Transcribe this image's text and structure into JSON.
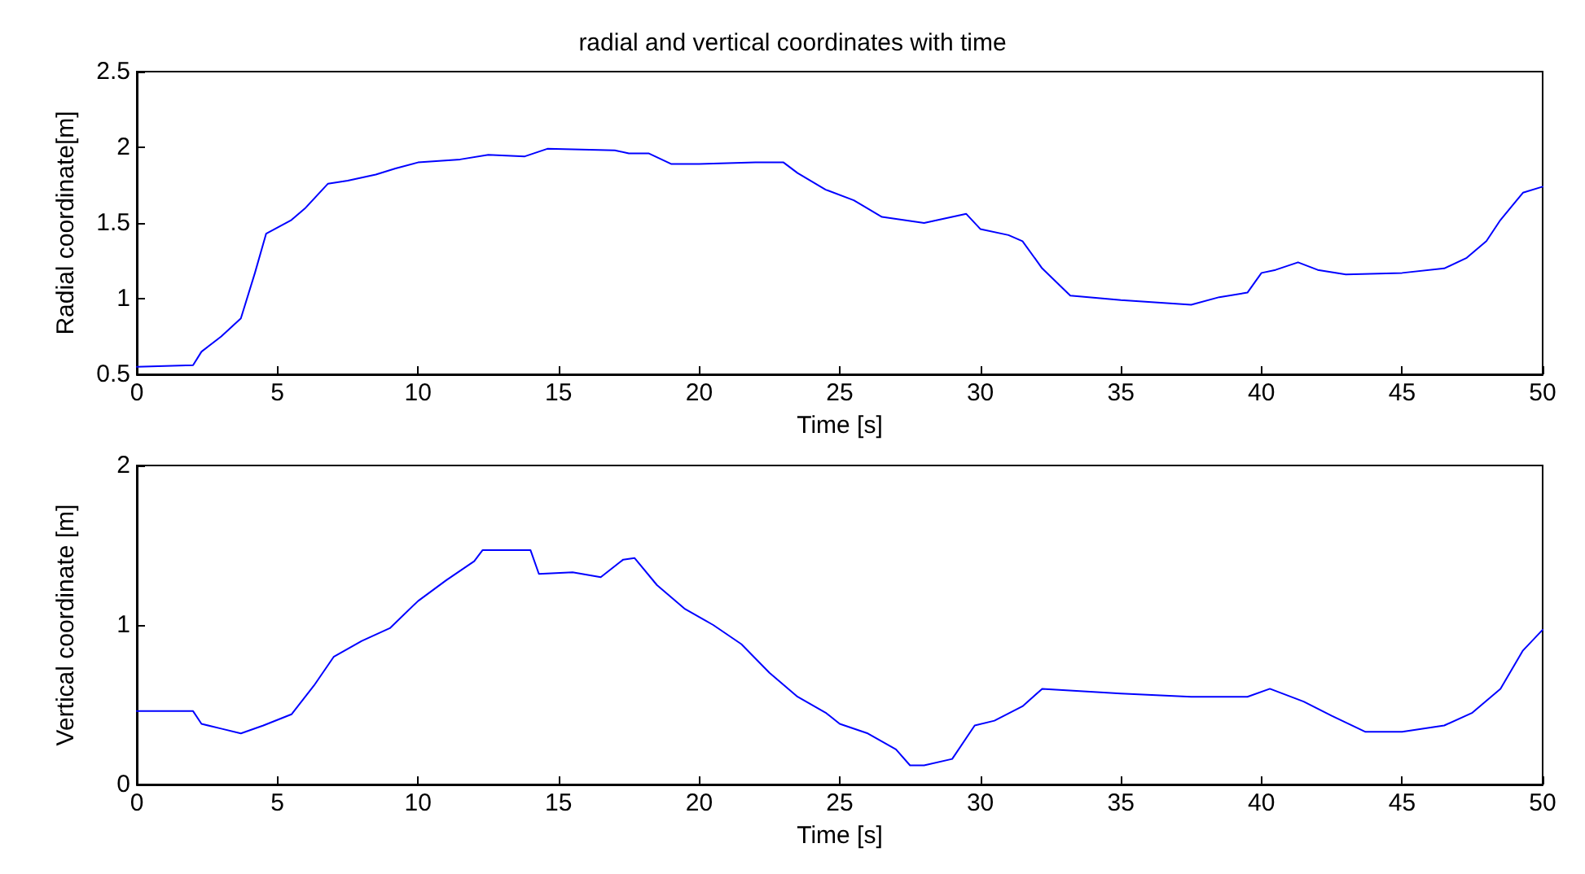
{
  "chart_data": [
    {
      "type": "line",
      "title": "radial and vertical coordinates with time",
      "xlabel": "Time [s]",
      "ylabel": "Radial coordinate[m]",
      "xlim": [
        0,
        50
      ],
      "xticks": [
        0,
        5,
        10,
        15,
        20,
        25,
        30,
        35,
        40,
        45,
        50
      ],
      "ylim": [
        0.5,
        2.5
      ],
      "yticks": [
        0.5,
        1,
        1.5,
        2,
        2.5
      ],
      "grid": false,
      "marker": "none",
      "line_style": "solid",
      "series": [
        {
          "color": "#0000ff",
          "x": [
            0,
            2,
            2.3,
            3,
            3.7,
            4.2,
            4.6,
            5.5,
            6,
            6.8,
            7.5,
            8.5,
            9.2,
            10,
            11.5,
            12.5,
            13.8,
            14.6,
            17,
            17.5,
            18.2,
            19,
            20,
            22,
            23,
            23.5,
            24.5,
            25.5,
            26.5,
            28,
            29.5,
            30,
            31,
            31.5,
            32.2,
            33.2,
            35,
            37.5,
            38.5,
            39.5,
            40,
            40.5,
            41.3,
            42,
            43,
            45,
            46.5,
            47.3,
            48,
            48.5,
            49.3,
            50
          ],
          "values": [
            0.55,
            0.56,
            0.65,
            0.75,
            0.87,
            1.17,
            1.43,
            1.52,
            1.6,
            1.76,
            1.78,
            1.82,
            1.86,
            1.9,
            1.92,
            1.95,
            1.94,
            1.99,
            1.98,
            1.96,
            1.96,
            1.89,
            1.89,
            1.9,
            1.9,
            1.83,
            1.72,
            1.65,
            1.54,
            1.5,
            1.56,
            1.46,
            1.42,
            1.38,
            1.2,
            1.02,
            0.99,
            0.96,
            1.01,
            1.04,
            1.17,
            1.19,
            1.24,
            1.19,
            1.16,
            1.17,
            1.2,
            1.27,
            1.38,
            1.52,
            1.7,
            1.74
          ]
        }
      ]
    },
    {
      "type": "line",
      "xlabel": "Time [s]",
      "ylabel": "Vertical coordinate [m]",
      "xlim": [
        0,
        50
      ],
      "xticks": [
        0,
        5,
        10,
        15,
        20,
        25,
        30,
        35,
        40,
        45,
        50
      ],
      "ylim": [
        0,
        2
      ],
      "yticks": [
        0,
        1,
        2
      ],
      "grid": false,
      "marker": "none",
      "line_style": "solid",
      "series": [
        {
          "color": "#0000ff",
          "x": [
            0,
            2,
            2.3,
            3,
            3.7,
            4.5,
            5.5,
            6.3,
            7,
            8,
            9,
            10,
            11,
            12,
            12.3,
            14,
            14.3,
            15.5,
            16.5,
            17.3,
            17.7,
            18.5,
            19.5,
            20.5,
            21.5,
            22.5,
            23.5,
            24.5,
            25,
            26,
            27,
            27.5,
            28,
            29,
            29.8,
            30.5,
            31.5,
            32.2,
            35,
            37.5,
            39.5,
            40.3,
            41.5,
            42.5,
            43.7,
            45,
            46.5,
            47.5,
            48.5,
            49.3,
            50
          ],
          "values": [
            0.46,
            0.46,
            0.38,
            0.35,
            0.32,
            0.37,
            0.44,
            0.62,
            0.8,
            0.9,
            0.98,
            1.15,
            1.28,
            1.4,
            1.47,
            1.47,
            1.32,
            1.33,
            1.3,
            1.41,
            1.42,
            1.25,
            1.1,
            1.0,
            0.88,
            0.7,
            0.55,
            0.45,
            0.38,
            0.32,
            0.22,
            0.12,
            0.12,
            0.16,
            0.37,
            0.4,
            0.49,
            0.6,
            0.57,
            0.55,
            0.55,
            0.6,
            0.52,
            0.43,
            0.33,
            0.33,
            0.37,
            0.45,
            0.6,
            0.84,
            0.97
          ]
        }
      ]
    }
  ]
}
